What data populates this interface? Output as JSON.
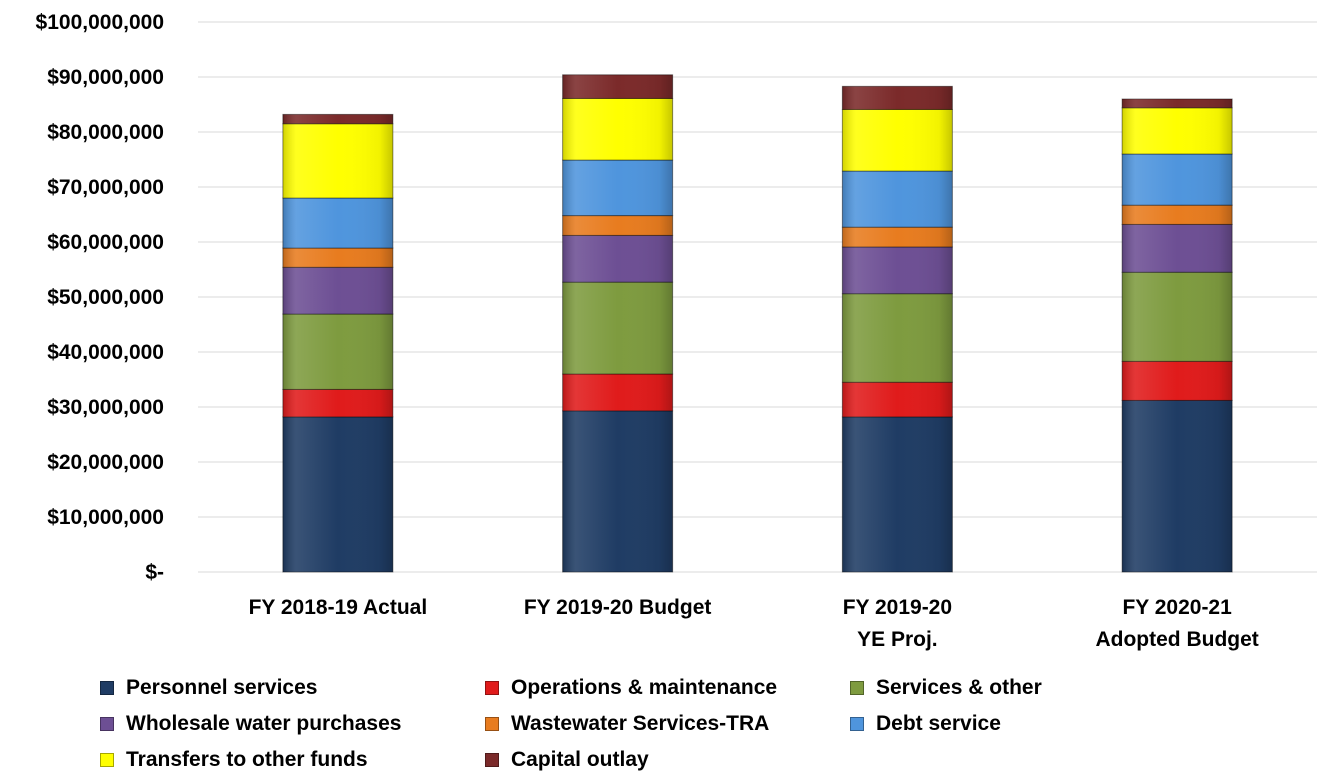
{
  "chart_data": {
    "type": "bar",
    "stacked": true,
    "categories": [
      [
        "FY 2018-19 Actual"
      ],
      [
        "FY 2019-20 Budget"
      ],
      [
        "FY 2019-20",
        "YE Proj."
      ],
      [
        "FY 2020-21",
        "Adopted Budget"
      ]
    ],
    "ylim": [
      0,
      100000000
    ],
    "yticks": [
      0,
      10000000,
      20000000,
      30000000,
      40000000,
      50000000,
      60000000,
      70000000,
      80000000,
      90000000,
      100000000
    ],
    "ytick_labels": [
      "$-",
      "$10,000,000",
      "$20,000,000",
      "$30,000,000",
      "$40,000,000",
      "$50,000,000",
      "$60,000,000",
      "$70,000,000",
      "$80,000,000",
      "$90,000,000",
      "$100,000,000"
    ],
    "grid": true,
    "legend_position": "bottom",
    "series": [
      {
        "name": "Personnel services",
        "color": "#1f3c64",
        "values": [
          28200000,
          29300000,
          28200000,
          31200000
        ]
      },
      {
        "name": "Operations & maintenance",
        "color": "#e01b1b",
        "values": [
          5000000,
          6700000,
          6300000,
          7100000
        ]
      },
      {
        "name": "Services & other",
        "color": "#7e9b3f",
        "values": [
          13700000,
          16700000,
          16100000,
          16200000
        ]
      },
      {
        "name": "Wholesale water purchases",
        "color": "#6d4f94",
        "values": [
          8500000,
          8500000,
          8500000,
          8700000
        ]
      },
      {
        "name": "Wastewater Services-TRA",
        "color": "#e87c1f",
        "values": [
          3500000,
          3600000,
          3600000,
          3500000
        ]
      },
      {
        "name": "Debt service",
        "color": "#4f95dd",
        "values": [
          9100000,
          10100000,
          10200000,
          9300000
        ]
      },
      {
        "name": "Transfers to other funds",
        "color": "#ffff00",
        "values": [
          13500000,
          11200000,
          11200000,
          8400000
        ]
      },
      {
        "name": "Capital outlay",
        "color": "#7b2a2a",
        "values": [
          1700000,
          4300000,
          4200000,
          1600000
        ]
      }
    ]
  }
}
